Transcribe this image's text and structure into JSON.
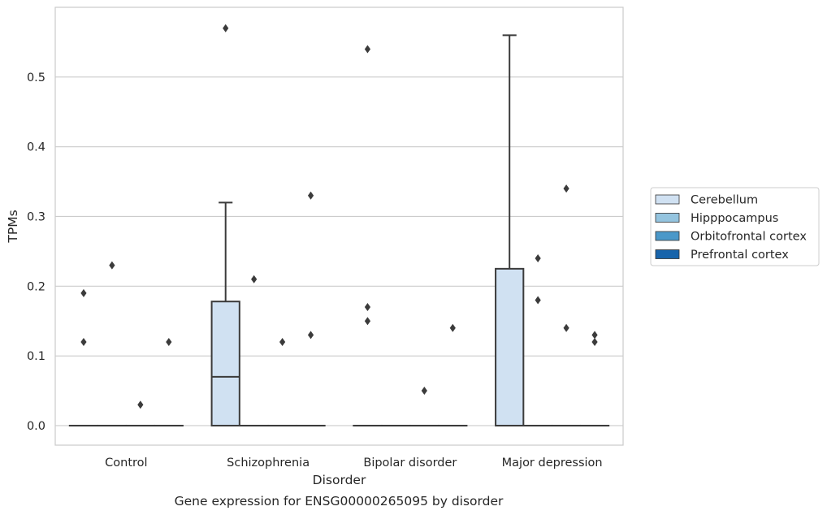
{
  "chart_data": {
    "type": "box",
    "xlabel": "Disorder",
    "ylabel": "TPMs",
    "caption": "Gene expression for ENSG00000265095 by disorder",
    "categories": [
      "Control",
      "Schizophrenia",
      "Bipolar disorder",
      "Major depression"
    ],
    "ylim": [
      -0.028,
      0.6
    ],
    "yticks": [
      0.0,
      0.1,
      0.2,
      0.3,
      0.4,
      0.5
    ],
    "ytick_labels": [
      "0.0",
      "0.1",
      "0.2",
      "0.3",
      "0.4",
      "0.5"
    ],
    "grid": true,
    "legend_placement": "right",
    "series": [
      {
        "name": "Cerebellum",
        "color": "#d0e1f2"
      },
      {
        "name": "Hipppocampus",
        "color": "#94c4df"
      },
      {
        "name": "Orbitofrontal cortex",
        "color": "#4a98c9"
      },
      {
        "name": "Prefrontal cortex",
        "color": "#1764ab"
      }
    ],
    "boxes": [
      {
        "category": "Control",
        "series": "Cerebellum",
        "q1": 0,
        "median": 0,
        "q3": 0,
        "whisker_low": 0,
        "whisker_high": 0,
        "outliers": [
          0.19,
          0.12
        ]
      },
      {
        "category": "Control",
        "series": "Hipppocampus",
        "q1": 0,
        "median": 0,
        "q3": 0,
        "whisker_low": 0,
        "whisker_high": 0,
        "outliers": [
          0.23
        ]
      },
      {
        "category": "Control",
        "series": "Orbitofrontal cortex",
        "q1": 0,
        "median": 0,
        "q3": 0,
        "whisker_low": 0,
        "whisker_high": 0,
        "outliers": [
          0.03
        ]
      },
      {
        "category": "Control",
        "series": "Prefrontal cortex",
        "q1": 0,
        "median": 0,
        "q3": 0,
        "whisker_low": 0,
        "whisker_high": 0,
        "outliers": [
          0.12
        ]
      },
      {
        "category": "Schizophrenia",
        "series": "Cerebellum",
        "q1": 0,
        "median": 0.07,
        "q3": 0.178,
        "whisker_low": 0,
        "whisker_high": 0.32,
        "outliers": [
          0.57
        ]
      },
      {
        "category": "Schizophrenia",
        "series": "Hipppocampus",
        "q1": 0,
        "median": 0,
        "q3": 0,
        "whisker_low": 0,
        "whisker_high": 0,
        "outliers": [
          0.21
        ]
      },
      {
        "category": "Schizophrenia",
        "series": "Orbitofrontal cortex",
        "q1": 0,
        "median": 0,
        "q3": 0,
        "whisker_low": 0,
        "whisker_high": 0,
        "outliers": [
          0.12
        ]
      },
      {
        "category": "Schizophrenia",
        "series": "Prefrontal cortex",
        "q1": 0,
        "median": 0,
        "q3": 0,
        "whisker_low": 0,
        "whisker_high": 0,
        "outliers": [
          0.33,
          0.13
        ]
      },
      {
        "category": "Bipolar disorder",
        "series": "Cerebellum",
        "q1": 0,
        "median": 0,
        "q3": 0,
        "whisker_low": 0,
        "whisker_high": 0,
        "outliers": [
          0.54,
          0.17,
          0.15
        ]
      },
      {
        "category": "Bipolar disorder",
        "series": "Hipppocampus",
        "q1": 0,
        "median": 0,
        "q3": 0,
        "whisker_low": 0,
        "whisker_high": 0,
        "outliers": []
      },
      {
        "category": "Bipolar disorder",
        "series": "Orbitofrontal cortex",
        "q1": 0,
        "median": 0,
        "q3": 0,
        "whisker_low": 0,
        "whisker_high": 0,
        "outliers": [
          0.05
        ]
      },
      {
        "category": "Bipolar disorder",
        "series": "Prefrontal cortex",
        "q1": 0,
        "median": 0,
        "q3": 0,
        "whisker_low": 0,
        "whisker_high": 0,
        "outliers": [
          0.14
        ]
      },
      {
        "category": "Major depression",
        "series": "Cerebellum",
        "q1": 0,
        "median": 0,
        "q3": 0.225,
        "whisker_low": 0,
        "whisker_high": 0.56,
        "outliers": []
      },
      {
        "category": "Major depression",
        "series": "Hipppocampus",
        "q1": 0,
        "median": 0,
        "q3": 0,
        "whisker_low": 0,
        "whisker_high": 0,
        "outliers": [
          0.24,
          0.18
        ]
      },
      {
        "category": "Major depression",
        "series": "Orbitofrontal cortex",
        "q1": 0,
        "median": 0,
        "q3": 0,
        "whisker_low": 0,
        "whisker_high": 0,
        "outliers": [
          0.34,
          0.14
        ]
      },
      {
        "category": "Major depression",
        "series": "Prefrontal cortex",
        "q1": 0,
        "median": 0,
        "q3": 0,
        "whisker_low": 0,
        "whisker_high": 0,
        "outliers": [
          0.13,
          0.12
        ]
      }
    ]
  }
}
